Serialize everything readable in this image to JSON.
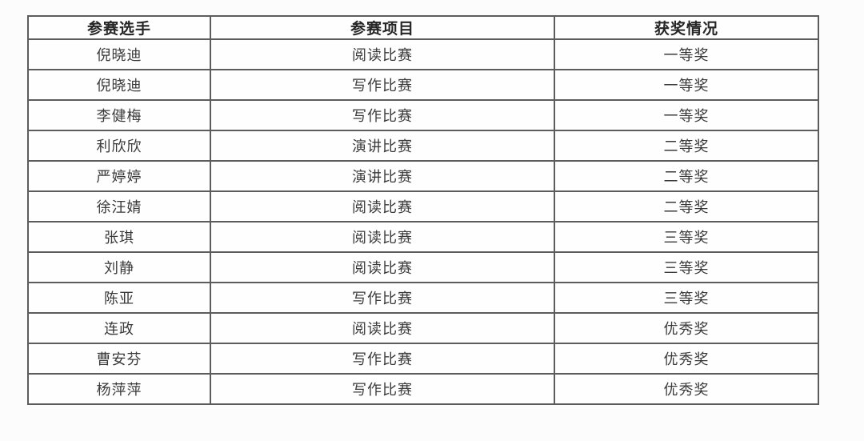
{
  "table": {
    "columns": [
      {
        "key": "player",
        "label": "参赛选手"
      },
      {
        "key": "event",
        "label": "参赛项目"
      },
      {
        "key": "award",
        "label": "获奖情况"
      }
    ],
    "rows": [
      {
        "player": "倪晓迪",
        "event": "阅读比赛",
        "award": "一等奖"
      },
      {
        "player": "倪晓迪",
        "event": "写作比赛",
        "award": "一等奖"
      },
      {
        "player": "李健梅",
        "event": "写作比赛",
        "award": "一等奖"
      },
      {
        "player": "利欣欣",
        "event": "演讲比赛",
        "award": "二等奖"
      },
      {
        "player": "严婷婷",
        "event": "演讲比赛",
        "award": "二等奖"
      },
      {
        "player": "徐汪婧",
        "event": "阅读比赛",
        "award": "二等奖"
      },
      {
        "player": "张琪",
        "event": "阅读比赛",
        "award": "三等奖"
      },
      {
        "player": "刘静",
        "event": "阅读比赛",
        "award": "三等奖"
      },
      {
        "player": "陈亚",
        "event": "写作比赛",
        "award": "三等奖"
      },
      {
        "player": "连政",
        "event": "阅读比赛",
        "award": "优秀奖"
      },
      {
        "player": "曹安芬",
        "event": "写作比赛",
        "award": "优秀奖"
      },
      {
        "player": "杨萍萍",
        "event": "写作比赛",
        "award": "优秀奖"
      }
    ],
    "colors": {
      "border": "#5c5c5c",
      "header_text": "#262626",
      "body_text": "#3a3a3a",
      "background": "#fcfcfc"
    }
  }
}
